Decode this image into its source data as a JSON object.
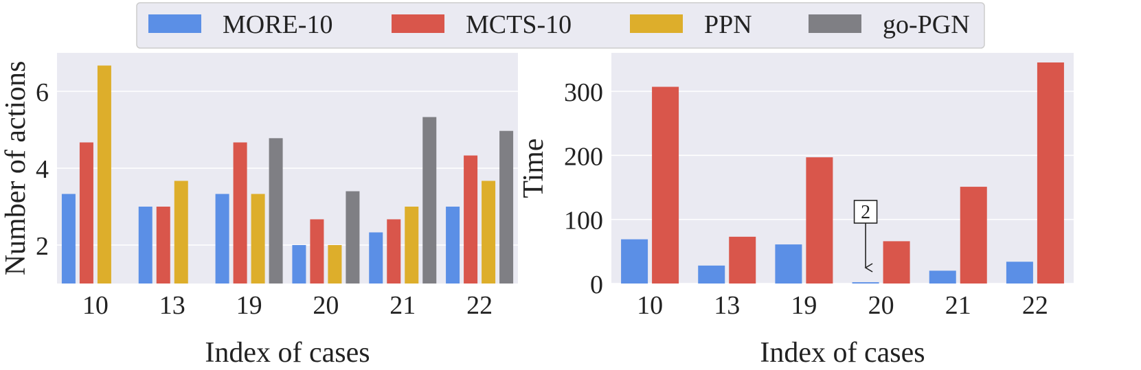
{
  "legend": [
    {
      "name": "MORE-10",
      "color": "#5B8FE6"
    },
    {
      "name": "MCTS-10",
      "color": "#D9564B"
    },
    {
      "name": "PPN",
      "color": "#DDAE2B"
    },
    {
      "name": "go-PGN",
      "color": "#7F7F84"
    }
  ],
  "chart_data": [
    {
      "type": "bar",
      "xlabel": "Index of cases",
      "ylabel": "Number of actions",
      "categories": [
        "10",
        "13",
        "19",
        "20",
        "21",
        "22"
      ],
      "ylim": [
        1,
        7
      ],
      "yticks": [
        2,
        4,
        6
      ],
      "grid": true,
      "series": [
        {
          "name": "MORE-10",
          "values": [
            3.33,
            3.0,
            3.33,
            2.0,
            2.33,
            3.0
          ]
        },
        {
          "name": "MCTS-10",
          "values": [
            4.67,
            3.0,
            4.67,
            2.67,
            2.67,
            4.33
          ]
        },
        {
          "name": "PPN",
          "values": [
            6.67,
            3.67,
            3.33,
            2.0,
            3.0,
            3.67
          ]
        },
        {
          "name": "go-PGN",
          "values": [
            null,
            null,
            4.78,
            3.4,
            5.33,
            4.97
          ]
        }
      ]
    },
    {
      "type": "bar",
      "xlabel": "Index of cases",
      "ylabel": "Time",
      "categories": [
        "10",
        "13",
        "19",
        "20",
        "21",
        "22"
      ],
      "ylim": [
        0,
        360
      ],
      "yticks": [
        0,
        100,
        200,
        300
      ],
      "grid": true,
      "series": [
        {
          "name": "MORE-10",
          "values": [
            69,
            28,
            61,
            2,
            20,
            34
          ]
        },
        {
          "name": "MCTS-10",
          "values": [
            307,
            73,
            197,
            66,
            151,
            345
          ]
        }
      ],
      "annotations": [
        {
          "text": "2",
          "category": "20",
          "series": "MORE-10"
        }
      ]
    }
  ]
}
